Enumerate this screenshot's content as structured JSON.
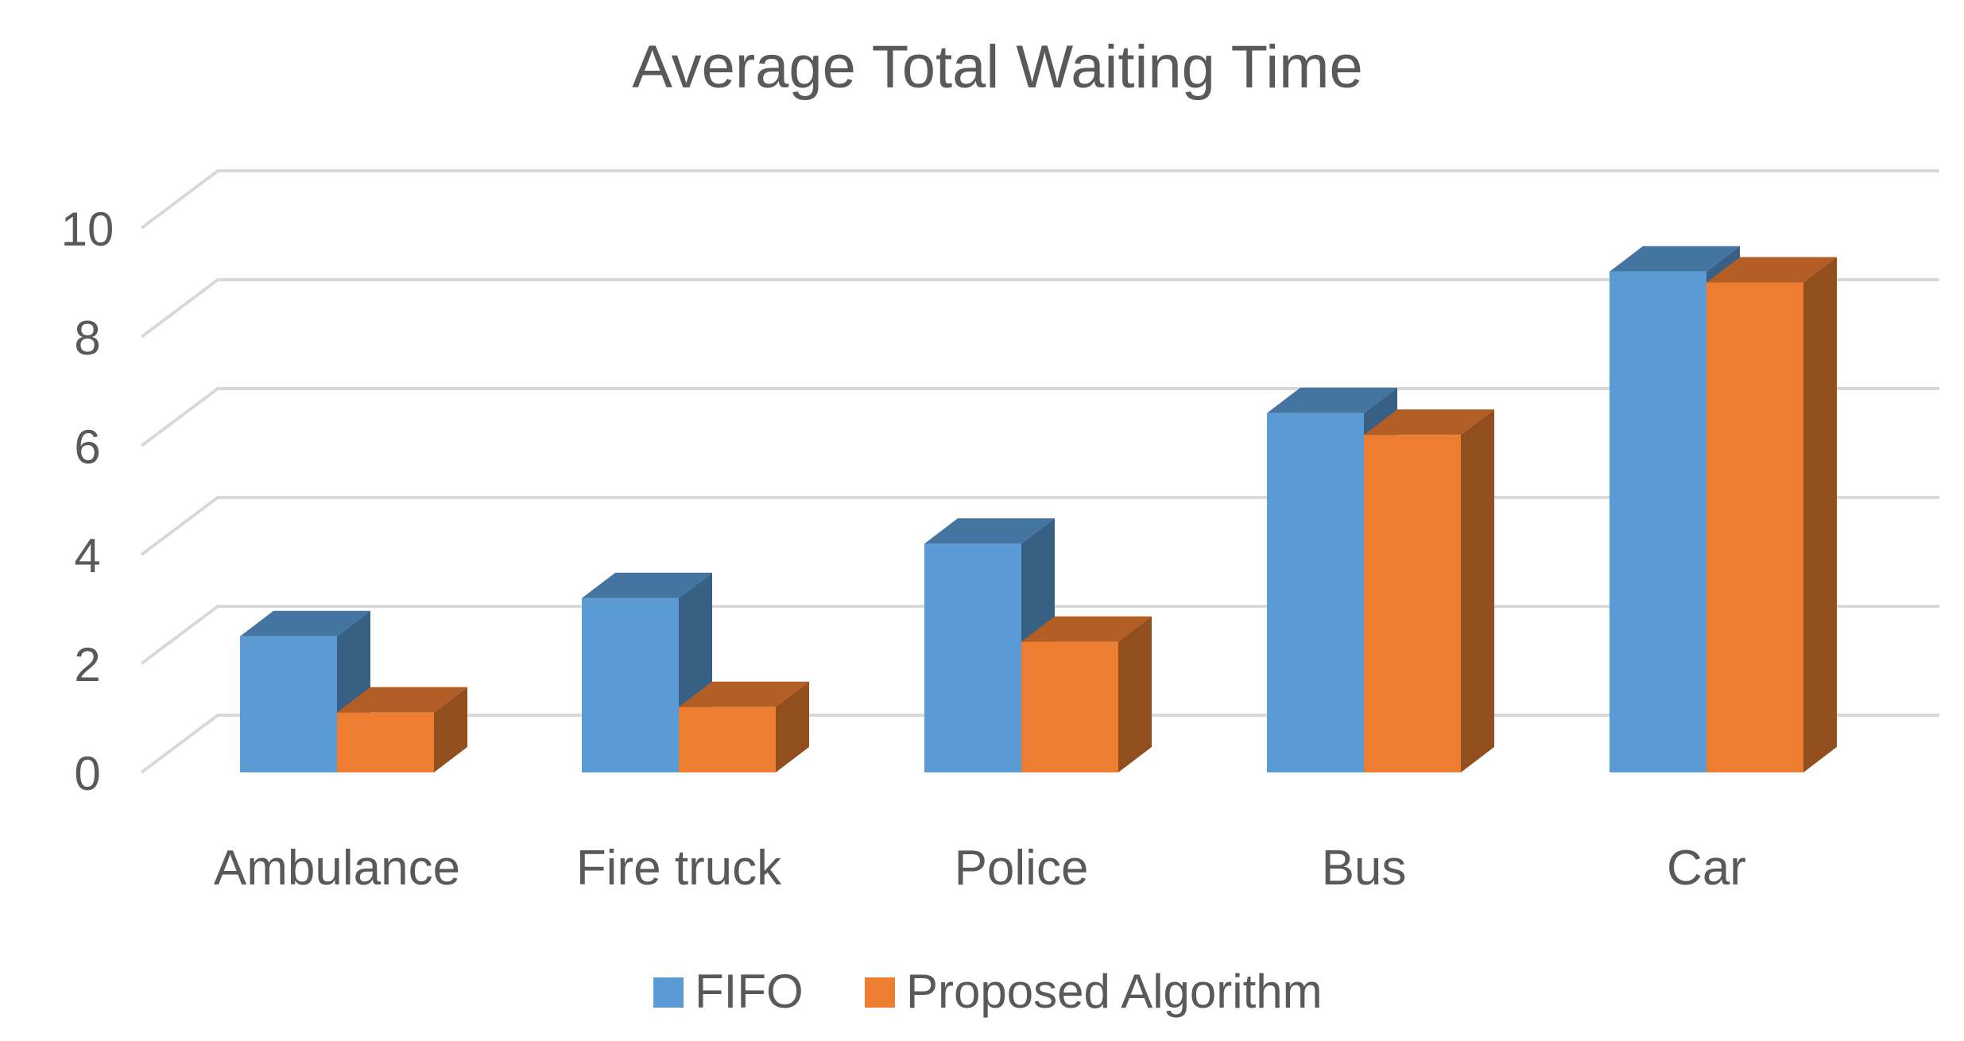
{
  "chart_data": {
    "type": "bar",
    "title": "Average Total Waiting Time",
    "categories": [
      "Ambulance",
      "Fire truck",
      "Police",
      "Bus",
      "Car"
    ],
    "series": [
      {
        "name": "FIFO",
        "values": [
          2.5,
          3.2,
          4.2,
          6.6,
          9.2
        ],
        "color": "#5b9bd5"
      },
      {
        "name": "Proposed Algorithm",
        "values": [
          1.1,
          1.2,
          2.4,
          6.2,
          9.0
        ],
        "color": "#ed7d31"
      }
    ],
    "yticks": [
      "0",
      "2",
      "4",
      "6",
      "8",
      "10"
    ],
    "ylim": [
      0,
      10
    ],
    "grid": true,
    "legend_position": "bottom",
    "style": "3d-clustered-column"
  }
}
